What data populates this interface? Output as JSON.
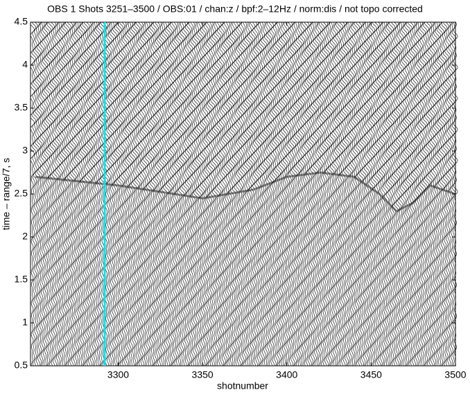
{
  "chart_data": {
    "type": "record-section",
    "title": "OBS 1 Shots 3251–3500 / OBS:01 / chan:z / bpf:2–12Hz / norm:dis / not topo corrected",
    "xlabel": "shotnumber",
    "ylabel": "time – range/7, s",
    "xlim": [
      3248,
      3500
    ],
    "ylim": [
      0.5,
      4.5
    ],
    "xticks": [
      3300,
      3350,
      3400,
      3450,
      3500
    ],
    "yticks": [
      0.5,
      1,
      1.5,
      2,
      2.5,
      3,
      3.5,
      4,
      4.5
    ],
    "highlighted_trace": 3292,
    "highlight_color": "#00e5ee",
    "arrival": {
      "x": [
        3251,
        3300,
        3350,
        3380,
        3400,
        3420,
        3440,
        3455,
        3465,
        3475,
        3485,
        3500
      ],
      "values": [
        2.7,
        2.6,
        2.45,
        2.55,
        2.7,
        2.75,
        2.7,
        2.5,
        2.3,
        2.4,
        2.6,
        2.5
      ]
    }
  }
}
